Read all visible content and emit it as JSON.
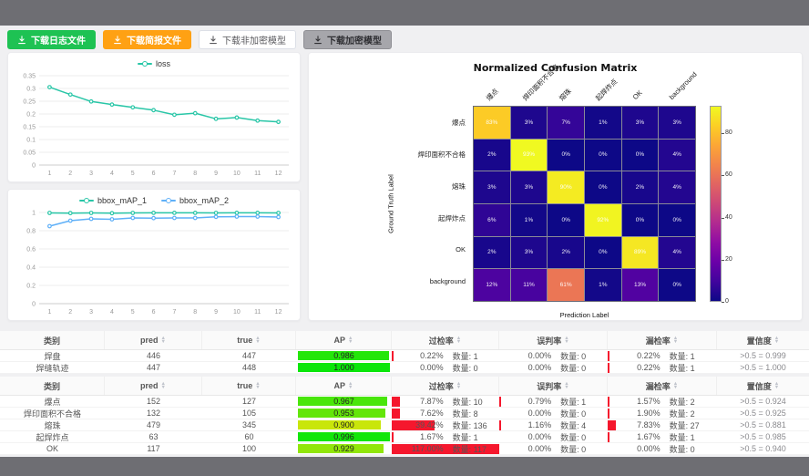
{
  "toolbar": {
    "buttons": [
      {
        "label": "下载日志文件",
        "style": "green"
      },
      {
        "label": "下载简报文件",
        "style": "orange"
      },
      {
        "label": "下载非加密模型",
        "style": "white"
      },
      {
        "label": "下载加密模型",
        "style": "gray"
      }
    ]
  },
  "chart_data": [
    {
      "type": "line",
      "name": "loss-chart",
      "legend_position": "top",
      "x": [
        1,
        2,
        3,
        4,
        5,
        6,
        7,
        8,
        9,
        10,
        11,
        12
      ],
      "series": [
        {
          "name": "loss",
          "color": "#29c6a7",
          "values": [
            0.305,
            0.276,
            0.249,
            0.237,
            0.226,
            0.215,
            0.197,
            0.203,
            0.181,
            0.186,
            0.174,
            0.169
          ]
        }
      ],
      "ylim": [
        0,
        0.35
      ],
      "yticks": [
        0,
        0.05,
        0.1,
        0.15,
        0.2,
        0.25,
        0.3,
        0.35
      ],
      "grid": true
    },
    {
      "type": "line",
      "name": "bbox-map-chart",
      "legend_position": "top",
      "x": [
        1,
        2,
        3,
        4,
        5,
        6,
        7,
        8,
        9,
        10,
        11,
        12
      ],
      "series": [
        {
          "name": "bbox_mAP_1",
          "color": "#29c6a7",
          "values": [
            0.995,
            0.993,
            0.995,
            0.992,
            0.995,
            0.996,
            0.996,
            0.996,
            0.995,
            0.996,
            0.996,
            0.995
          ]
        },
        {
          "name": "bbox_mAP_2",
          "color": "#5fb0f8",
          "values": [
            0.85,
            0.91,
            0.93,
            0.925,
            0.94,
            0.938,
            0.94,
            0.94,
            0.952,
            0.955,
            0.955,
            0.95
          ]
        }
      ],
      "ylim": [
        0,
        1
      ],
      "yticks": [
        0,
        0.2,
        0.4,
        0.6,
        0.8,
        1
      ],
      "grid": true
    },
    {
      "type": "heatmap",
      "name": "confusion-matrix",
      "title": "Normalized Confusion Matrix",
      "xlabel": "Prediction Label",
      "ylabel": "Ground Truth Label",
      "labels": [
        "爆点",
        "焊印面积不合格",
        "熔珠",
        "起焊炸点",
        "OK",
        "background"
      ],
      "values_percent": [
        [
          83,
          3,
          7,
          1,
          3,
          3
        ],
        [
          2,
          93,
          0,
          0,
          0,
          4
        ],
        [
          3,
          3,
          90,
          0,
          2,
          4
        ],
        [
          6,
          1,
          0,
          92,
          0,
          0
        ],
        [
          2,
          3,
          2,
          0,
          89,
          4
        ],
        [
          12,
          11,
          61,
          1,
          13,
          0
        ]
      ],
      "colormap": "plasma",
      "color_max": 93,
      "colorbar_ticks": [
        0,
        20,
        40,
        60,
        80
      ]
    }
  ],
  "tables": [
    {
      "headers": {
        "class": "类别",
        "pred": "pred",
        "true": "true",
        "ap": "AP",
        "overdetect": "过检率",
        "misjudge": "误判率",
        "miss": "漏检率",
        "confidence": "置信度"
      },
      "quantity_label": "数量:",
      "rows": [
        {
          "class": "焊盘",
          "pred": "446",
          "true": "447",
          "ap": "0.986",
          "overdetect": {
            "pct": "0.22",
            "count": "1"
          },
          "misjudge": {
            "pct": "0.00",
            "count": "0"
          },
          "miss": {
            "pct": "0.22",
            "count": "1"
          },
          "confidence": ">0.5 = 0.999"
        },
        {
          "class": "焊缝轨迹",
          "pred": "447",
          "true": "448",
          "ap": "1.000",
          "overdetect": {
            "pct": "0.00",
            "count": "0"
          },
          "misjudge": {
            "pct": "0.00",
            "count": "0"
          },
          "miss": {
            "pct": "0.22",
            "count": "1"
          },
          "confidence": ">0.5 = 1.000"
        }
      ]
    },
    {
      "headers": {
        "class": "类别",
        "pred": "pred",
        "true": "true",
        "ap": "AP",
        "overdetect": "过检率",
        "misjudge": "误判率",
        "miss": "漏检率",
        "confidence": "置信度"
      },
      "quantity_label": "数量:",
      "rows": [
        {
          "class": "爆点",
          "pred": "152",
          "true": "127",
          "ap": "0.967",
          "overdetect": {
            "pct": "7.87",
            "count": "10"
          },
          "misjudge": {
            "pct": "0.79",
            "count": "1"
          },
          "miss": {
            "pct": "1.57",
            "count": "2"
          },
          "confidence": ">0.5 = 0.924"
        },
        {
          "class": "焊印面积不合格",
          "pred": "132",
          "true": "105",
          "ap": "0.953",
          "overdetect": {
            "pct": "7.62",
            "count": "8"
          },
          "misjudge": {
            "pct": "0.00",
            "count": "0"
          },
          "miss": {
            "pct": "1.90",
            "count": "2"
          },
          "confidence": ">0.5 = 0.925"
        },
        {
          "class": "熔珠",
          "pred": "479",
          "true": "345",
          "ap": "0.900",
          "overdetect": {
            "pct": "39.42",
            "count": "136"
          },
          "misjudge": {
            "pct": "1.16",
            "count": "4"
          },
          "miss": {
            "pct": "7.83",
            "count": "27"
          },
          "confidence": ">0.5 = 0.881"
        },
        {
          "class": "起焊炸点",
          "pred": "63",
          "true": "60",
          "ap": "0.996",
          "overdetect": {
            "pct": "1.67",
            "count": "1"
          },
          "misjudge": {
            "pct": "0.00",
            "count": "0"
          },
          "miss": {
            "pct": "1.67",
            "count": "1"
          },
          "confidence": ">0.5 = 0.985"
        },
        {
          "class": "OK",
          "pred": "117",
          "true": "100",
          "ap": "0.929",
          "overdetect": {
            "pct": "117.00",
            "count": "117"
          },
          "misjudge": {
            "pct": "0.00",
            "count": "0"
          },
          "miss": {
            "pct": "0.00",
            "count": "0"
          },
          "confidence": ">0.5 = 0.940"
        }
      ]
    }
  ]
}
